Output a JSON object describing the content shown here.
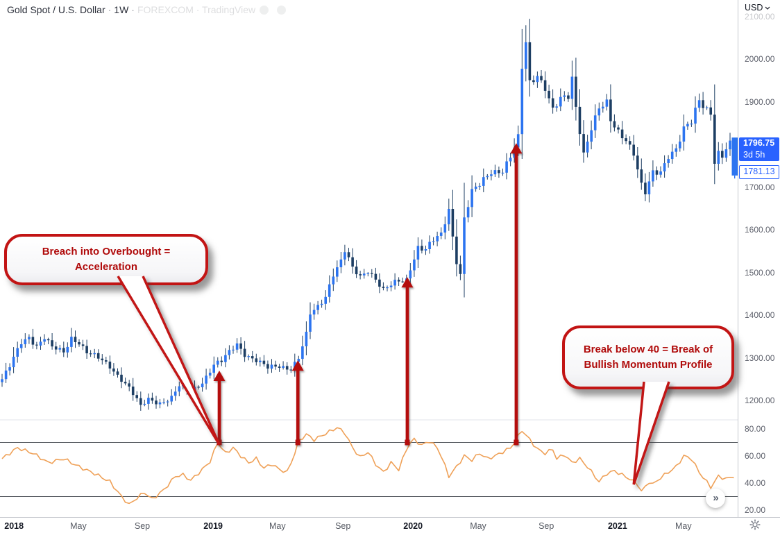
{
  "header": {
    "symbol_title": "Gold Spot / U.S. Dollar",
    "interval": "1W",
    "separator": "·",
    "faded_source": "FOREXCOM · TradingView"
  },
  "price_axis": {
    "currency_label": "USD",
    "ticks": [
      2100,
      2000,
      1900,
      1700,
      1600,
      1500,
      1400,
      1300,
      1200
    ],
    "faded_tick": 2100,
    "last_price_badge": {
      "price": "1796.75",
      "countdown": "3d 5h",
      "bg": "#2962FF"
    },
    "secondary_label": {
      "price": "1781.13",
      "color": "#2962FF"
    }
  },
  "indicator_axis": {
    "ticks": [
      80,
      60,
      40,
      20
    ]
  },
  "time_axis": {
    "labels": [
      {
        "week": 3.1,
        "text": "2018",
        "major": true
      },
      {
        "week": 19.8,
        "text": "May",
        "major": false
      },
      {
        "week": 36.4,
        "text": "Sep",
        "major": false
      },
      {
        "week": 54.8,
        "text": "2019",
        "major": true
      },
      {
        "week": 71.5,
        "text": "May",
        "major": false
      },
      {
        "week": 88.5,
        "text": "Sep",
        "major": false
      },
      {
        "week": 106.7,
        "text": "2020",
        "major": true
      },
      {
        "week": 123.6,
        "text": "May",
        "major": false
      },
      {
        "week": 141.3,
        "text": "Sep",
        "major": false
      },
      {
        "week": 159.8,
        "text": "2021",
        "major": true
      },
      {
        "week": 176.9,
        "text": "May",
        "major": false
      }
    ]
  },
  "annotations": {
    "callouts": [
      {
        "line1": "Breach into Overbought =",
        "line2": "Acceleration",
        "tail_target": {
          "week": 56.4,
          "level": 70
        }
      },
      {
        "line1": "Break below 40 = Break of",
        "line2": "Bullish Momentum Profile",
        "tail_target": {
          "week": 164,
          "level": 40
        }
      }
    ],
    "arrows": [
      {
        "week": 56.4,
        "from_level": 70,
        "to_price": 1270
      },
      {
        "week": 76.8,
        "from_level": 70,
        "to_price": 1294
      },
      {
        "week": 105.2,
        "from_level": 70,
        "to_price": 1489
      },
      {
        "week": 133.5,
        "from_level": 70,
        "to_price": 1803
      }
    ],
    "arrow_color": "#b40b0b"
  },
  "controls": {
    "expand_button": "»"
  },
  "chart_data": {
    "type": "candlestick_with_rsi_line",
    "title": "Gold Spot / U.S. Dollar, 1W  (weekly candles, Dec 2017 - Jul 2021)",
    "x_unit": "week_index_from_2017-12-11",
    "weeks_total": 190,
    "price_pane": {
      "ylim": [
        1150,
        2140
      ],
      "ticks": [
        2100,
        2000,
        1900,
        1700,
        1600,
        1500,
        1400,
        1300,
        1200
      ],
      "last_close": 1796.75,
      "candle_close_anchors": [
        [
          0,
          1250
        ],
        [
          2,
          1278
        ],
        [
          5,
          1335
        ],
        [
          7,
          1350
        ],
        [
          9,
          1330
        ],
        [
          11,
          1348
        ],
        [
          13,
          1322
        ],
        [
          16,
          1312
        ],
        [
          18,
          1348
        ],
        [
          20,
          1338
        ],
        [
          22,
          1313
        ],
        [
          25,
          1297
        ],
        [
          28,
          1280
        ],
        [
          31,
          1252
        ],
        [
          33,
          1230
        ],
        [
          36,
          1184
        ],
        [
          38,
          1202
        ],
        [
          41,
          1196
        ],
        [
          44,
          1207
        ],
        [
          46,
          1232
        ],
        [
          49,
          1221
        ],
        [
          52,
          1245
        ],
        [
          55,
          1284
        ],
        [
          57,
          1290
        ],
        [
          61,
          1333
        ],
        [
          63,
          1311
        ],
        [
          66,
          1294
        ],
        [
          69,
          1274
        ],
        [
          72,
          1281
        ],
        [
          75,
          1277
        ],
        [
          77,
          1300
        ],
        [
          79,
          1352
        ],
        [
          80,
          1400
        ],
        [
          82,
          1418
        ],
        [
          84,
          1446
        ],
        [
          86,
          1500
        ],
        [
          88,
          1527
        ],
        [
          89,
          1550
        ],
        [
          91,
          1506
        ],
        [
          93,
          1488
        ],
        [
          95,
          1507
        ],
        [
          97,
          1488
        ],
        [
          99,
          1459
        ],
        [
          101,
          1468
        ],
        [
          103,
          1477
        ],
        [
          105,
          1482
        ],
        [
          106,
          1512
        ],
        [
          108,
          1562
        ],
        [
          110,
          1555
        ],
        [
          112,
          1573
        ],
        [
          114,
          1585
        ],
        [
          116,
          1648
        ],
        [
          117,
          1585
        ],
        [
          118,
          1530
        ],
        [
          119,
          1498
        ],
        [
          120,
          1630
        ],
        [
          122,
          1688
        ],
        [
          124,
          1702
        ],
        [
          127,
          1736
        ],
        [
          130,
          1743
        ],
        [
          132,
          1772
        ],
        [
          134,
          1812
        ],
        [
          135,
          1975
        ],
        [
          136,
          2035
        ],
        [
          137,
          1942
        ],
        [
          139,
          1965
        ],
        [
          141,
          1938
        ],
        [
          143,
          1882
        ],
        [
          145,
          1902
        ],
        [
          147,
          1908
        ],
        [
          148,
          1952
        ],
        [
          149,
          1888
        ],
        [
          151,
          1782
        ],
        [
          153,
          1842
        ],
        [
          155,
          1882
        ],
        [
          157,
          1892
        ],
        [
          158,
          1852
        ],
        [
          160,
          1830
        ],
        [
          162,
          1816
        ],
        [
          164,
          1782
        ],
        [
          166,
          1702
        ],
        [
          167,
          1683
        ],
        [
          169,
          1730
        ],
        [
          171,
          1736
        ],
        [
          173,
          1778
        ],
        [
          175,
          1792
        ],
        [
          177,
          1834
        ],
        [
          179,
          1848
        ],
        [
          181,
          1902
        ],
        [
          182,
          1892
        ],
        [
          184,
          1878
        ],
        [
          185,
          1764
        ],
        [
          186,
          1782
        ],
        [
          187,
          1772
        ],
        [
          188,
          1788
        ],
        [
          189,
          1797
        ]
      ],
      "edge_bar": {
        "open": 1727,
        "close": 1816,
        "low": 1720
      }
    },
    "rsi_pane": {
      "ylim": [
        15,
        90
      ],
      "ticks": [
        80,
        60,
        40,
        20
      ],
      "levels": {
        "overbought": 70,
        "oversold": 30
      },
      "break_line": {
        "value": 40,
        "start_week": 43,
        "end_week": 190.8,
        "color": "#cf3a28"
      },
      "rsi_anchors": [
        [
          0,
          58
        ],
        [
          4,
          66
        ],
        [
          8,
          62
        ],
        [
          12,
          55
        ],
        [
          16,
          58
        ],
        [
          20,
          52
        ],
        [
          24,
          47
        ],
        [
          28,
          41
        ],
        [
          31,
          30
        ],
        [
          33,
          24
        ],
        [
          35,
          29
        ],
        [
          37,
          33
        ],
        [
          39,
          28
        ],
        [
          42,
          35
        ],
        [
          45,
          45
        ],
        [
          47,
          46
        ],
        [
          49,
          42
        ],
        [
          52,
          50
        ],
        [
          54,
          56
        ],
        [
          56,
          70
        ],
        [
          58,
          62
        ],
        [
          60,
          66
        ],
        [
          62,
          60
        ],
        [
          64,
          55
        ],
        [
          66,
          58
        ],
        [
          68,
          51
        ],
        [
          70,
          54
        ],
        [
          72,
          50
        ],
        [
          74,
          48
        ],
        [
          76,
          62
        ],
        [
          77,
          71
        ],
        [
          79,
          76
        ],
        [
          81,
          72
        ],
        [
          83,
          75
        ],
        [
          85,
          78
        ],
        [
          87,
          81
        ],
        [
          89,
          77
        ],
        [
          91,
          66
        ],
        [
          93,
          59
        ],
        [
          95,
          63
        ],
        [
          97,
          54
        ],
        [
          99,
          48
        ],
        [
          101,
          55
        ],
        [
          103,
          50
        ],
        [
          105,
          65
        ],
        [
          106,
          70
        ],
        [
          107,
          72
        ],
        [
          109,
          68
        ],
        [
          111,
          71
        ],
        [
          113,
          66
        ],
        [
          114,
          60
        ],
        [
          116,
          45
        ],
        [
          118,
          52
        ],
        [
          120,
          60
        ],
        [
          122,
          57
        ],
        [
          124,
          62
        ],
        [
          126,
          58
        ],
        [
          128,
          60
        ],
        [
          130,
          63
        ],
        [
          132,
          66
        ],
        [
          133,
          70
        ],
        [
          135,
          79
        ],
        [
          137,
          72
        ],
        [
          139,
          65
        ],
        [
          141,
          62
        ],
        [
          143,
          65
        ],
        [
          144,
          58
        ],
        [
          146,
          61
        ],
        [
          148,
          55
        ],
        [
          150,
          58
        ],
        [
          152,
          52
        ],
        [
          155,
          41
        ],
        [
          157,
          47
        ],
        [
          159,
          49
        ],
        [
          161,
          46
        ],
        [
          163,
          43
        ],
        [
          165,
          39
        ],
        [
          166,
          34
        ],
        [
          167,
          37
        ],
        [
          168,
          41
        ],
        [
          169,
          39
        ],
        [
          171,
          44
        ],
        [
          175,
          52
        ],
        [
          177,
          60
        ],
        [
          179,
          58
        ],
        [
          181,
          48
        ],
        [
          184,
          37
        ],
        [
          186,
          45
        ],
        [
          188,
          43
        ],
        [
          190,
          45
        ]
      ],
      "line_color": "#efa158"
    },
    "colors": {
      "up": "#2c74f0",
      "down": "#1d3e63",
      "wick": "#1d3e63"
    },
    "legend_position": "none",
    "grid": "off"
  }
}
